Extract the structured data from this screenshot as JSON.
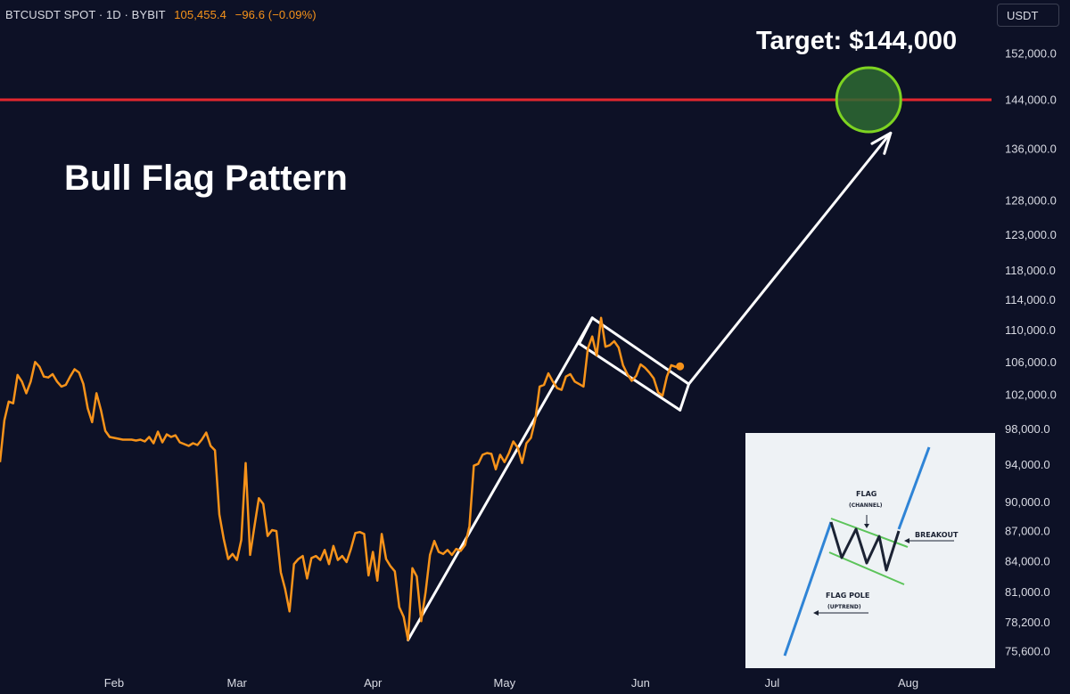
{
  "header": {
    "symbol": "BTCUSDT SPOT · 1D · BYBIT",
    "last_price": "105,455.4",
    "change": "−96.6 (−0.09%)"
  },
  "currency_button": "USDT",
  "annotations": {
    "title": "Bull Flag Pattern",
    "target": "Target: $144,000"
  },
  "colors": {
    "background": "#0d1126",
    "price_line": "#f7931a",
    "target_line": "#e3262e",
    "target_circle": "#2e6a32",
    "target_circle_stroke": "#7ed321",
    "pattern_lines": "#ffffff"
  },
  "inset": {
    "flag_title": "FLAG",
    "flag_sub": "(CHANNEL)",
    "breakout": "BREAKOUT",
    "pole_title": "FLAG POLE",
    "pole_sub": "(UPTREND)"
  },
  "chart_data": {
    "type": "line",
    "title": "",
    "xlabel": "",
    "ylabel": "",
    "x_tick_labels": [
      "Feb",
      "Mar",
      "Apr",
      "May",
      "Jun",
      "Jul",
      "Aug"
    ],
    "y_tick_labels": [
      "152,000.0",
      "144,000.0",
      "136,000.0",
      "128,000.0",
      "123,000.0",
      "118,000.0",
      "114,000.0",
      "110,000.0",
      "106,000.0",
      "102,000.0",
      "98,000.0",
      "94,000.0",
      "90,000.0",
      "87,000.0",
      "84,000.0",
      "81,000.0",
      "78,200.0",
      "75,600.0"
    ],
    "y_scale": "log",
    "ylim": [
      74800,
      158000
    ],
    "xlim": [
      "2025-01-06",
      "2025-08-20"
    ],
    "grid": false,
    "target_level": 144000,
    "series": [
      {
        "name": "BTCUSDT",
        "x": [
          "2025-01-06",
          "2025-01-07",
          "2025-01-08",
          "2025-01-09",
          "2025-01-10",
          "2025-01-11",
          "2025-01-12",
          "2025-01-13",
          "2025-01-14",
          "2025-01-15",
          "2025-01-16",
          "2025-01-17",
          "2025-01-18",
          "2025-01-19",
          "2025-01-20",
          "2025-01-21",
          "2025-01-22",
          "2025-01-23",
          "2025-01-24",
          "2025-01-25",
          "2025-01-26",
          "2025-01-27",
          "2025-01-28",
          "2025-01-29",
          "2025-01-30",
          "2025-01-31",
          "2025-02-01",
          "2025-02-02",
          "2025-02-03",
          "2025-02-04",
          "2025-02-05",
          "2025-02-06",
          "2025-02-07",
          "2025-02-08",
          "2025-02-09",
          "2025-02-10",
          "2025-02-11",
          "2025-02-12",
          "2025-02-13",
          "2025-02-14",
          "2025-02-15",
          "2025-02-16",
          "2025-02-17",
          "2025-02-18",
          "2025-02-19",
          "2025-02-20",
          "2025-02-21",
          "2025-02-22",
          "2025-02-23",
          "2025-02-24",
          "2025-02-25",
          "2025-02-26",
          "2025-02-27",
          "2025-02-28",
          "2025-03-01",
          "2025-03-02",
          "2025-03-03",
          "2025-03-04",
          "2025-03-05",
          "2025-03-06",
          "2025-03-07",
          "2025-03-08",
          "2025-03-09",
          "2025-03-10",
          "2025-03-11",
          "2025-03-12",
          "2025-03-13",
          "2025-03-14",
          "2025-03-15",
          "2025-03-16",
          "2025-03-17",
          "2025-03-18",
          "2025-03-19",
          "2025-03-20",
          "2025-03-21",
          "2025-03-22",
          "2025-03-23",
          "2025-03-24",
          "2025-03-25",
          "2025-03-26",
          "2025-03-27",
          "2025-03-28",
          "2025-03-29",
          "2025-03-30",
          "2025-03-31",
          "2025-04-01",
          "2025-04-02",
          "2025-04-03",
          "2025-04-04",
          "2025-04-05",
          "2025-04-06",
          "2025-04-07",
          "2025-04-08",
          "2025-04-09",
          "2025-04-10",
          "2025-04-11",
          "2025-04-12",
          "2025-04-13",
          "2025-04-14",
          "2025-04-15",
          "2025-04-16",
          "2025-04-17",
          "2025-04-18",
          "2025-04-19",
          "2025-04-20",
          "2025-04-21",
          "2025-04-22",
          "2025-04-23",
          "2025-04-24",
          "2025-04-25",
          "2025-04-26",
          "2025-04-27",
          "2025-04-28",
          "2025-04-29",
          "2025-04-30",
          "2025-05-01",
          "2025-05-02",
          "2025-05-03",
          "2025-05-04",
          "2025-05-05",
          "2025-05-06",
          "2025-05-07",
          "2025-05-08",
          "2025-05-09",
          "2025-05-10",
          "2025-05-11",
          "2025-05-12",
          "2025-05-13",
          "2025-05-14",
          "2025-05-15",
          "2025-05-16",
          "2025-05-17",
          "2025-05-18",
          "2025-05-19",
          "2025-05-20",
          "2025-05-21",
          "2025-05-22",
          "2025-05-23",
          "2025-05-24",
          "2025-05-25",
          "2025-05-26",
          "2025-05-27",
          "2025-05-28",
          "2025-05-29",
          "2025-05-30",
          "2025-05-31",
          "2025-06-01",
          "2025-06-02",
          "2025-06-03",
          "2025-06-04",
          "2025-06-05",
          "2025-06-06",
          "2025-06-07",
          "2025-06-08",
          "2025-06-09",
          "2025-06-10"
        ],
        "y": [
          94300,
          99000,
          101200,
          101000,
          104400,
          103600,
          102200,
          103600,
          106000,
          105400,
          104200,
          104100,
          104500,
          103600,
          103000,
          103200,
          104200,
          105100,
          104700,
          103300,
          100400,
          98800,
          102200,
          100200,
          97800,
          97100,
          97000,
          96900,
          96800,
          96800,
          96800,
          96700,
          96800,
          96600,
          97100,
          96400,
          97700,
          96500,
          97400,
          97100,
          97300,
          96500,
          96300,
          96100,
          96400,
          96200,
          96800,
          97600,
          96100,
          95600,
          88700,
          86200,
          84200,
          84700,
          84100,
          86100,
          94200,
          84600,
          87500,
          90400,
          89800,
          86500,
          87100,
          87000,
          82900,
          81300,
          79200,
          83700,
          84200,
          84500,
          82300,
          84300,
          84500,
          84100,
          85100,
          83700,
          85500,
          84100,
          84500,
          83900,
          85200,
          86800,
          86900,
          86700,
          82600,
          84900,
          82100,
          86700,
          84200,
          83500,
          83000,
          79600,
          78700,
          76600,
          83300,
          82500,
          78300,
          81000,
          84600,
          86000,
          84900,
          84700,
          85100,
          84600,
          85200,
          85000,
          85600,
          87500,
          93900,
          94100,
          95100,
          95300,
          95200,
          93500,
          95100,
          94300,
          95300,
          96600,
          95900,
          94200,
          96400,
          97000,
          99100,
          103000,
          103200,
          104600,
          103600,
          102800,
          102600,
          104200,
          104500,
          103600,
          103300,
          103000,
          107700,
          109200,
          106800,
          111600,
          107900,
          108100,
          108600,
          107800,
          105600,
          104500,
          103700,
          104300,
          105700,
          105300,
          104700,
          104000,
          102300,
          101900,
          104200,
          105600,
          105400,
          105455
        ]
      }
    ],
    "pattern_overlay": {
      "flag_pole": [
        [
          "2025-04-09",
          76600
        ],
        [
          "2025-05-21",
          111600
        ]
      ],
      "flag_channel_upper": [
        [
          "2025-05-21",
          111600
        ],
        [
          "2025-06-12",
          103300
        ]
      ],
      "flag_channel_lower": [
        [
          "2025-05-18",
          108300
        ],
        [
          "2025-06-10",
          100200
        ]
      ],
      "projection_arrow": [
        [
          "2025-06-12",
          103300
        ],
        [
          "2025-07-28",
          138500
        ]
      ],
      "target_circle_at": [
        "2025-07-23",
        144000
      ]
    }
  }
}
